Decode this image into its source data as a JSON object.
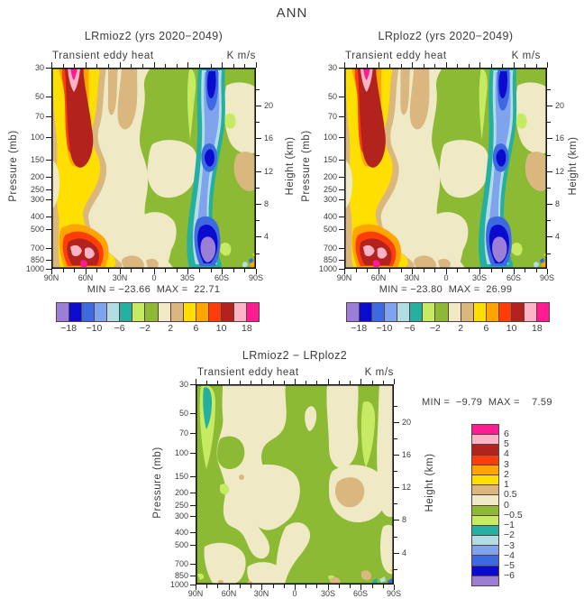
{
  "title": "ANN",
  "panels": [
    {
      "title": "LRmioz2 (yrs 2020−2049)",
      "sub_left": "Transient eddy heat",
      "sub_right": "K m/s",
      "stats": "MIN = −23.66  MAX =  22.71"
    },
    {
      "title": "LRploz2 (yrs 2020−2049)",
      "sub_left": "Transient eddy heat",
      "sub_right": "K m/s",
      "stats": "MIN = −23.80  MAX =  26.99"
    },
    {
      "title": "LRmioz2 − LRploz2",
      "sub_left": "Transient eddy heat",
      "sub_right": "K m/s",
      "stats": "MIN =  −9.79  MAX =    7.59"
    }
  ],
  "axes": {
    "lat_labels": [
      "90N",
      "60N",
      "30N",
      "0",
      "30S",
      "60S",
      "90S"
    ],
    "pressure_ticks": [
      30,
      50,
      70,
      100,
      150,
      200,
      250,
      300,
      400,
      500,
      700,
      850,
      1000
    ],
    "pressure_labels": [
      "30",
      "50",
      "70",
      "100",
      "150",
      "200",
      "250",
      "300",
      "400",
      "500",
      "700",
      "850",
      "1000"
    ],
    "height_major": [
      20,
      16,
      12,
      8,
      4
    ],
    "height_labels": [
      "20",
      "16",
      "12",
      "8",
      "4"
    ],
    "height_minor": [
      22,
      18,
      14,
      10,
      6,
      2
    ],
    "pressure_title": "Pressure (mb)",
    "height_title": "Height (km)"
  },
  "palette": {
    "purple": "#9B7FD6",
    "darkblue": "#0B0BD0",
    "blue": "#3E6AE1",
    "lightblue": "#7FA3ED",
    "palecyan": "#B3DDE4",
    "teal": "#25AFA0",
    "lightgreen": "#C6EB62",
    "olive": "#8CBA34",
    "cream": "#F0E9C6",
    "tan": "#D9B77E",
    "yellow": "#FFDF00",
    "orange": "#FFA400",
    "orangered": "#FF3D0A",
    "darkred": "#B3231D",
    "pink": "#FFB3C6",
    "magenta": "#FF1C93"
  },
  "colorbar": {
    "main_colors": [
      "#9B7FD6",
      "#0B0BD0",
      "#3E6AE1",
      "#7FA3ED",
      "#B3DDE4",
      "#25AFA0",
      "#C6EB62",
      "#8CBA34",
      "#F0E9C6",
      "#D9B77E",
      "#FFDF00",
      "#FFA400",
      "#FF3D0A",
      "#B3231D",
      "#FFB3C6",
      "#FF1C93"
    ],
    "main_boundary_labels": [
      "−18",
      "",
      "−10",
      "",
      "−6",
      "",
      "−2",
      "",
      "2",
      "",
      "6",
      "",
      "10",
      "",
      "18"
    ],
    "diff_colors": [
      "#FF1C93",
      "#FFB3C6",
      "#B3231D",
      "#FF3D0A",
      "#FFA400",
      "#FFDF00",
      "#D9B77E",
      "#F0E9C6",
      "#8CBA34",
      "#C6EB62",
      "#25AFA0",
      "#B3DDE4",
      "#7FA3ED",
      "#3E6AE1",
      "#0B0BD0",
      "#9B7FD6"
    ],
    "diff_boundary_labels": [
      "6",
      "5",
      "4",
      "3",
      "2",
      "1",
      "0.5",
      "0",
      "−0.5",
      "−1",
      "−2",
      "−3",
      "−4",
      "−5",
      "−6"
    ]
  },
  "chart_data": [
    {
      "type": "contour",
      "title": "LRmioz2 (yrs 2020−2049)",
      "variable": "Transient eddy heat",
      "units": "K m/s",
      "season": "ANN",
      "x_axis": {
        "label": "latitude",
        "ticks": [
          "90N",
          "60N",
          "30N",
          "0",
          "30S",
          "60S",
          "90S"
        ],
        "minor_tick_deg": 10
      },
      "y_axis_left": {
        "label": "Pressure (mb)",
        "scale": "log",
        "ticks": [
          30,
          50,
          70,
          100,
          150,
          200,
          250,
          300,
          400,
          500,
          700,
          850,
          1000
        ]
      },
      "y_axis_right": {
        "label": "Height (km)",
        "ticks": [
          20,
          16,
          12,
          8,
          4
        ]
      },
      "min": -23.66,
      "max": 22.71,
      "colorbar_labeled_levels": [
        -18,
        -10,
        -6,
        -2,
        2,
        6,
        10,
        18
      ],
      "n_color_bins": 16,
      "pattern_summary": "Positive (yellow/orange/red, >6) column over NH mid-high latitudes near 60N with maxima (pink/magenta, >14) near 30-150 mb and near the surface 700-1000 mb; negative (blue, <-6) column near 30S-60S with minima aloft (30-50 mb), at 200-300 mb and near the surface (purple core, <-18); near-zero cream/green elsewhere."
    },
    {
      "type": "contour",
      "title": "LRploz2 (yrs 2020−2049)",
      "variable": "Transient eddy heat",
      "units": "K m/s",
      "season": "ANN",
      "x_axis": {
        "label": "latitude",
        "ticks": [
          "90N",
          "60N",
          "30N",
          "0",
          "30S",
          "60S",
          "90S"
        ],
        "minor_tick_deg": 10
      },
      "y_axis_left": {
        "label": "Pressure (mb)",
        "scale": "log",
        "ticks": [
          30,
          50,
          70,
          100,
          150,
          200,
          250,
          300,
          400,
          500,
          700,
          850,
          1000
        ]
      },
      "y_axis_right": {
        "label": "Height (km)",
        "ticks": [
          20,
          16,
          12,
          8,
          4
        ]
      },
      "min": -23.8,
      "max": 26.99,
      "colorbar_labeled_levels": [
        -18,
        -10,
        -6,
        -2,
        2,
        6,
        10,
        18
      ],
      "n_color_bins": 16,
      "pattern_summary": "Nearly identical pattern to LRmioz2: positive band near 60N peaking aloft and near surface, negative band near 30S-60S."
    },
    {
      "type": "contour",
      "title": "LRmioz2 − LRploz2",
      "variable": "Transient eddy heat",
      "units": "K m/s",
      "season": "ANN",
      "x_axis": {
        "label": "latitude",
        "ticks": [
          "90N",
          "60N",
          "30N",
          "0",
          "30S",
          "60S",
          "90S"
        ],
        "minor_tick_deg": 10
      },
      "y_axis_left": {
        "label": "Pressure (mb)",
        "scale": "log",
        "ticks": [
          30,
          50,
          70,
          100,
          150,
          200,
          250,
          300,
          400,
          500,
          700,
          850,
          1000
        ]
      },
      "y_axis_right": {
        "label": "Height (km)",
        "ticks": [
          20,
          16,
          12,
          8,
          4
        ]
      },
      "min": -9.79,
      "max": 7.59,
      "colorbar_levels": [
        -6,
        -5,
        -4,
        -3,
        -2,
        -1,
        -0.5,
        0,
        0.5,
        1,
        2,
        3,
        4,
        5,
        6
      ],
      "n_color_bins": 16,
      "pattern_summary": "Differences mostly between -0.5 and +0.5 (mottled green/cream); small negative pocket (teal, below -2) near 80N at 30-70 mb; weak positive tan spots (0.5-1) near 30S-40S around 200-300 mb and scattered near-surface specks near 90S."
    }
  ]
}
